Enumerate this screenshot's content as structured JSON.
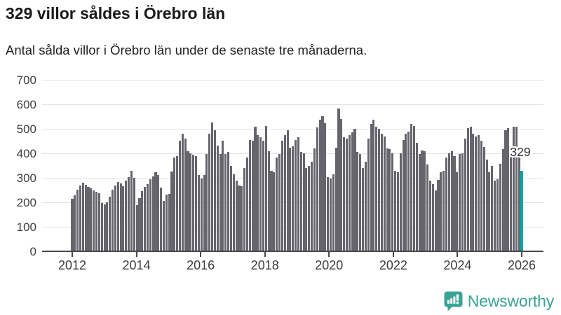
{
  "header": {
    "title": "329 villor såldes i Örebro län",
    "subtitle": "Antal sålda villor i Örebro län under de senaste tre månaderna."
  },
  "chart_data": {
    "type": "bar",
    "title": "329 villor såldes i Örebro län",
    "subtitle": "Antal sålda villor i Örebro län under de senaste tre månaderna.",
    "ylabel": "",
    "xlabel": "",
    "ylim": [
      0,
      700
    ],
    "grid": true,
    "yticks": [
      "0",
      "100",
      "200",
      "300",
      "400",
      "500",
      "600",
      "700"
    ],
    "xticks": [
      "2012",
      "2014",
      "2016",
      "2018",
      "2020",
      "2022",
      "2024",
      "2026"
    ],
    "bar_color": "#66656d",
    "highlight_color": "#00a6a6",
    "x": [
      "2012-01",
      "2012-02",
      "2012-03",
      "2012-04",
      "2012-05",
      "2012-06",
      "2012-07",
      "2012-08",
      "2012-09",
      "2012-10",
      "2012-11",
      "2012-12",
      "2013-01",
      "2013-02",
      "2013-03",
      "2013-04",
      "2013-05",
      "2013-06",
      "2013-07",
      "2013-08",
      "2013-09",
      "2013-10",
      "2013-11",
      "2013-12",
      "2014-01",
      "2014-02",
      "2014-03",
      "2014-04",
      "2014-05",
      "2014-06",
      "2014-07",
      "2014-08",
      "2014-09",
      "2014-10",
      "2014-11",
      "2014-12",
      "2015-01",
      "2015-02",
      "2015-03",
      "2015-04",
      "2015-05",
      "2015-06",
      "2015-07",
      "2015-08",
      "2015-09",
      "2015-10",
      "2015-11",
      "2015-12",
      "2016-01",
      "2016-02",
      "2016-03",
      "2016-04",
      "2016-05",
      "2016-06",
      "2016-07",
      "2016-08",
      "2016-09",
      "2016-10",
      "2016-11",
      "2016-12",
      "2017-01",
      "2017-02",
      "2017-03",
      "2017-04",
      "2017-05",
      "2017-06",
      "2017-07",
      "2017-08",
      "2017-09",
      "2017-10",
      "2017-11",
      "2017-12",
      "2018-01",
      "2018-02",
      "2018-03",
      "2018-04",
      "2018-05",
      "2018-06",
      "2018-07",
      "2018-08",
      "2018-09",
      "2018-10",
      "2018-11",
      "2018-12",
      "2019-01",
      "2019-02",
      "2019-03",
      "2019-04",
      "2019-05",
      "2019-06",
      "2019-07",
      "2019-08",
      "2019-09",
      "2019-10",
      "2019-11",
      "2019-12",
      "2020-01",
      "2020-02",
      "2020-03",
      "2020-04",
      "2020-05",
      "2020-06",
      "2020-07",
      "2020-08",
      "2020-09",
      "2020-10",
      "2020-11",
      "2020-12",
      "2021-01",
      "2021-02",
      "2021-03",
      "2021-04",
      "2021-05",
      "2021-06",
      "2021-07",
      "2021-08",
      "2021-09",
      "2021-10",
      "2021-11",
      "2021-12",
      "2022-01",
      "2022-02",
      "2022-03",
      "2022-04",
      "2022-05",
      "2022-06",
      "2022-07",
      "2022-08",
      "2022-09",
      "2022-10",
      "2022-11",
      "2022-12",
      "2023-01",
      "2023-02",
      "2023-03",
      "2023-04",
      "2023-05",
      "2023-06",
      "2023-07",
      "2023-08",
      "2023-09",
      "2023-10",
      "2023-11",
      "2023-12",
      "2024-01",
      "2024-02",
      "2024-03",
      "2024-04",
      "2024-05",
      "2024-06",
      "2024-07",
      "2024-08",
      "2024-09",
      "2024-10",
      "2024-11",
      "2024-12",
      "2025-01",
      "2025-02",
      "2025-03",
      "2025-04",
      "2025-05",
      "2025-06",
      "2025-07",
      "2025-08",
      "2025-09",
      "2025-10",
      "2025-11",
      "2025-12"
    ],
    "values": [
      215,
      228,
      252,
      270,
      280,
      272,
      262,
      256,
      250,
      244,
      236,
      196,
      192,
      200,
      222,
      252,
      270,
      284,
      278,
      266,
      288,
      302,
      328,
      300,
      190,
      217,
      245,
      264,
      274,
      293,
      307,
      324,
      312,
      260,
      207,
      231,
      235,
      327,
      384,
      388,
      451,
      479,
      460,
      408,
      399,
      394,
      388,
      312,
      298,
      312,
      398,
      479,
      527,
      494,
      432,
      398,
      451,
      398,
      405,
      350,
      315,
      288,
      269,
      266,
      341,
      384,
      455,
      451,
      508,
      475,
      466,
      451,
      511,
      410,
      328,
      322,
      384,
      398,
      451,
      475,
      494,
      424,
      428,
      455,
      466,
      405,
      401,
      341,
      350,
      365,
      420,
      505,
      537,
      551,
      522,
      302,
      298,
      315,
      424,
      584,
      541,
      466,
      460,
      475,
      485,
      500,
      405,
      398,
      341,
      366,
      460,
      520,
      537,
      510,
      500,
      480,
      470,
      420,
      417,
      400,
      328,
      322,
      400,
      455,
      479,
      489,
      519,
      511,
      442,
      398,
      412,
      408,
      353,
      288,
      274,
      250,
      291,
      322,
      328,
      384,
      400,
      410,
      390,
      322,
      398,
      400,
      460,
      504,
      508,
      479,
      470,
      475,
      451,
      427,
      374,
      322,
      350,
      288,
      295,
      357,
      416,
      494,
      504,
      400,
      508,
      508,
      420,
      329
    ],
    "highlight": {
      "index": 167,
      "value": 329,
      "label": "329"
    },
    "legend": []
  },
  "footer": {
    "brand": "Newsworthy",
    "brand_color": "#3ba396",
    "logo_icon": "bar-chart-speech-bubble-icon"
  }
}
